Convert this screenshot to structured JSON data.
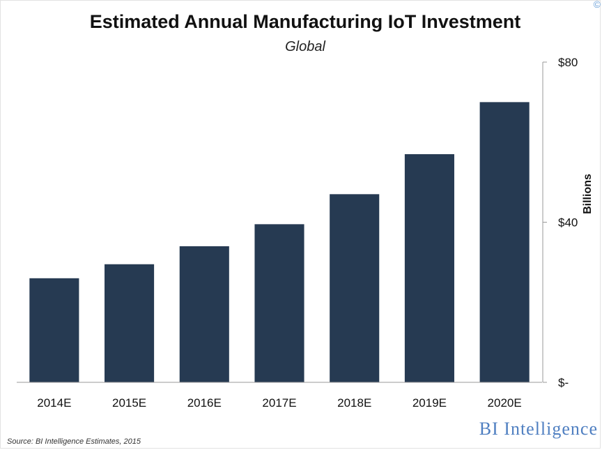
{
  "chart_data": {
    "type": "bar",
    "title": "Estimated Annual Manufacturing IoT Investment",
    "subtitle": "Global",
    "ylabel": "Billions",
    "categories": [
      "2014E",
      "2015E",
      "2016E",
      "2017E",
      "2018E",
      "2019E",
      "2020E"
    ],
    "values": [
      26,
      29.5,
      34,
      39.5,
      47,
      57,
      70
    ],
    "ylim": [
      0,
      80
    ],
    "y_ticks": [
      {
        "value": 0,
        "label": "$-"
      },
      {
        "value": 40,
        "label": "$40"
      },
      {
        "value": 80,
        "label": "$80"
      }
    ],
    "y_axis_side": "right",
    "grid": false,
    "legend": "none",
    "bar_color": "#263a52"
  },
  "source": "Source: BI Intelligence Estimates, 2015",
  "brand": "BI Intelligence",
  "brand_color": "#4f7fc1"
}
